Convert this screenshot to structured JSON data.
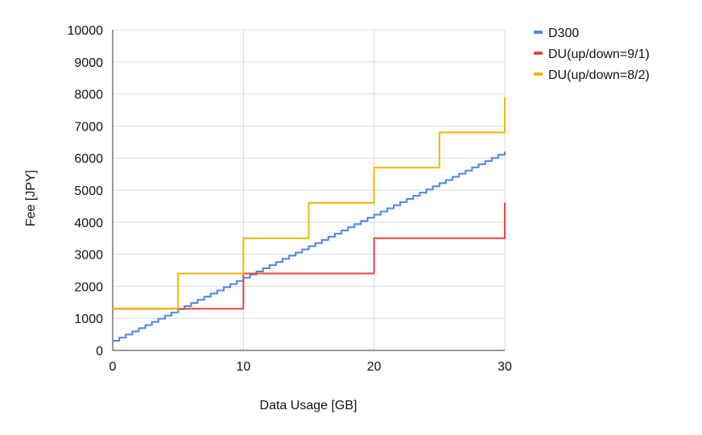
{
  "chart_data": {
    "type": "line",
    "title": "",
    "xlabel": "Data Usage [GB]",
    "ylabel": "Fee [JPY]",
    "xlim": [
      0,
      30
    ],
    "ylim": [
      0,
      10000
    ],
    "x_ticks": [
      "0",
      "10",
      "20",
      "30"
    ],
    "y_ticks": [
      "0",
      "1000",
      "2000",
      "3000",
      "4000",
      "5000",
      "6000",
      "7000",
      "8000",
      "9000",
      "10000"
    ],
    "grid": true,
    "legend_position": "right",
    "series": [
      {
        "name": "D300",
        "color": "#4a86e8",
        "step": true,
        "x": [
          0,
          30
        ],
        "y": [
          300,
          6200
        ],
        "note_steps": "staircase rising ~100 JPY per 0.5 GB"
      },
      {
        "name": "DU(up/down=9/1)",
        "color": "#e8453c",
        "step": true,
        "x": [
          0,
          10,
          20,
          30
        ],
        "y": [
          1300,
          2400,
          3500,
          4600
        ]
      },
      {
        "name": "DU(up/down=8/2)",
        "color": "#f4b400",
        "step": true,
        "x": [
          0,
          5,
          10,
          15,
          20,
          25,
          30
        ],
        "y": [
          1300,
          2400,
          3500,
          4600,
          5700,
          6800,
          7900
        ]
      }
    ]
  }
}
